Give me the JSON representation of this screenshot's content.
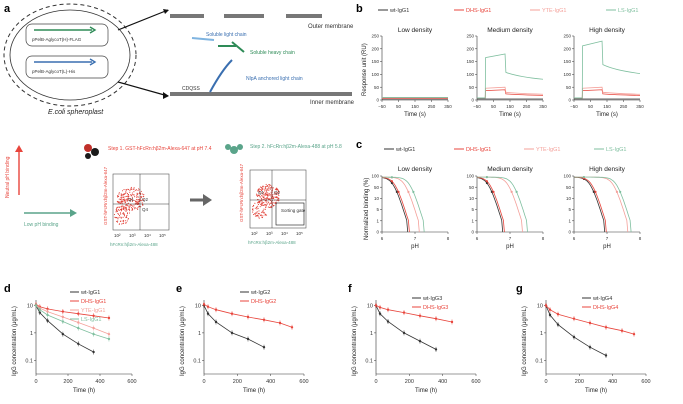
{
  "colors": {
    "wt": "#333333",
    "dhs": "#e8453c",
    "yte": "#f4a09a",
    "ls": "#7fbf9f",
    "green": "#2e8b57",
    "blue": "#3a6fb0",
    "red": "#e8453c"
  },
  "panel_a": {
    "label": "a",
    "construct1": "pPelB-AglycoT(H)-FLAG",
    "construct2": "pPelB-AglycoT(L)-His",
    "outer_membrane": "Outer membrane",
    "inner_membrane": "Inner membrane",
    "soluble_light": "Soluble light chain",
    "soluble_heavy": "Soluble heavy chain",
    "nlpa": "NlpA anchored light chain",
    "cdqss": "CDQSS",
    "spheroplast": "E.coli spheroplast"
  },
  "panel_sort": {
    "neutral": "Neutral pH binding",
    "low": "Low pH binding",
    "step1": "Step 1. GST-hFcRn:hβ2m-Alexa-647 at pH 7.4",
    "step2": "Step 2. hFcRn:hβ2m-Alexa-488 at pH 5.8",
    "ylabel1": "GST-hFcRn:hβ2m-Alexa-647",
    "ylabel2": "GST-hFcRn:hβ2m-Alexa-647",
    "xlabel": "hFcRn:hβ2m-Alexa-488",
    "q1": "Q1",
    "q2": "Q2",
    "q4": "Q4",
    "sorting_gate": "Sorting gate",
    "ticks": [
      "10²",
      "10³",
      "10⁴",
      "10⁵"
    ]
  },
  "panel_b": {
    "label": "b",
    "legend": [
      "wt-IgG1",
      "DHS-IgG1",
      "YTE-IgG1",
      "LS-IgG1"
    ],
    "ylabel": "Response unit (RU)",
    "xlabel": "Time (s)",
    "titles": [
      "Low density",
      "Medium density",
      "High density"
    ],
    "xticks": [
      "−50",
      "50",
      "150",
      "250",
      "350"
    ],
    "yticks": [
      "0",
      "50",
      "100",
      "150",
      "200",
      "250"
    ]
  },
  "panel_c": {
    "label": "c",
    "legend": [
      "wt-IgG1",
      "DHS-IgG1",
      "YTE-IgG1",
      "LS-IgG1"
    ],
    "ylabel": "Normalized binding (%)",
    "xlabel": "pH",
    "titles": [
      "Low density",
      "Medium density",
      "High density"
    ],
    "xticks": [
      "6",
      "7",
      "8"
    ],
    "yticks": [
      "0",
      "1",
      "5",
      "10",
      "50",
      "100"
    ]
  },
  "chart_data": [
    {
      "panel": "d",
      "type": "line",
      "legend": [
        "wt-IgG1",
        "DHS-IgG1",
        "YTE-IgG1",
        "LS-IgG1"
      ],
      "xlabel": "Time (h)",
      "ylabel": "IgG concentration (μg/mL)",
      "xticks": [
        "0",
        "200",
        "400",
        "600"
      ],
      "yticks": [
        "0.1",
        "1",
        "10"
      ],
      "series": [
        {
          "name": "wt-IgG1",
          "color": "#333333",
          "x": [
            0,
            24,
            72,
            168,
            264,
            360
          ],
          "y": [
            10,
            5.5,
            2.8,
            0.9,
            0.4,
            0.2
          ]
        },
        {
          "name": "DHS-IgG1",
          "color": "#e8453c",
          "x": [
            0,
            24,
            72,
            168,
            264,
            360,
            456
          ],
          "y": [
            11,
            9,
            7.5,
            6,
            5,
            4.2,
            3.5
          ]
        },
        {
          "name": "YTE-IgG1",
          "color": "#f4a09a",
          "x": [
            0,
            24,
            72,
            168,
            264,
            360,
            456
          ],
          "y": [
            10,
            8,
            6,
            3.8,
            2.4,
            1.5,
            0.9
          ]
        },
        {
          "name": "LS-IgG1",
          "color": "#7fbf9f",
          "x": [
            0,
            24,
            72,
            168,
            264,
            360,
            456
          ],
          "y": [
            10,
            7,
            4.5,
            2.6,
            1.5,
            0.9,
            0.6
          ]
        }
      ]
    },
    {
      "panel": "e",
      "type": "line",
      "legend": [
        "wt-IgG2",
        "DHS-IgG2"
      ],
      "xlabel": "Time (h)",
      "ylabel": "IgG concentration (μg/mL)",
      "xticks": [
        "0",
        "200",
        "400",
        "600"
      ],
      "yticks": [
        "0.1",
        "1",
        "10"
      ],
      "series": [
        {
          "name": "wt-IgG2",
          "color": "#333333",
          "x": [
            0,
            24,
            72,
            168,
            264,
            360
          ],
          "y": [
            10,
            5,
            2.5,
            1,
            0.6,
            0.3
          ]
        },
        {
          "name": "DHS-IgG2",
          "color": "#e8453c",
          "x": [
            0,
            24,
            72,
            168,
            264,
            360,
            456,
            528
          ],
          "y": [
            11,
            9,
            7,
            5,
            3.8,
            3,
            2.3,
            1.6
          ]
        }
      ]
    },
    {
      "panel": "f",
      "type": "line",
      "legend": [
        "wt-IgG3",
        "DHS-IgG3"
      ],
      "xlabel": "Time (h)",
      "ylabel": "IgG concentration (μg/mL)",
      "xticks": [
        "0",
        "200",
        "400",
        "600"
      ],
      "yticks": [
        "0.1",
        "1",
        "10"
      ],
      "series": [
        {
          "name": "wt-IgG3",
          "color": "#333333",
          "x": [
            0,
            24,
            72,
            168,
            264,
            360
          ],
          "y": [
            10,
            5,
            2.6,
            1,
            0.5,
            0.25
          ]
        },
        {
          "name": "DHS-IgG3",
          "color": "#e8453c",
          "x": [
            0,
            24,
            72,
            168,
            264,
            360,
            456
          ],
          "y": [
            10,
            8.5,
            7,
            5.5,
            4.2,
            3.3,
            2.5
          ]
        }
      ]
    },
    {
      "panel": "g",
      "type": "line",
      "legend": [
        "wt-IgG4",
        "DHS-IgG4"
      ],
      "xlabel": "Time (h)",
      "ylabel": "IgG concentration (μg/mL)",
      "xticks": [
        "0",
        "200",
        "400",
        "600"
      ],
      "yticks": [
        "0.1",
        "1",
        "10"
      ],
      "series": [
        {
          "name": "wt-IgG4",
          "color": "#333333",
          "x": [
            0,
            24,
            72,
            168,
            264,
            360
          ],
          "y": [
            10,
            4.5,
            2,
            0.7,
            0.3,
            0.15
          ]
        },
        {
          "name": "DHS-IgG4",
          "color": "#e8453c",
          "x": [
            0,
            24,
            72,
            168,
            264,
            360,
            456,
            528
          ],
          "y": [
            10,
            7,
            4.8,
            3.3,
            2.3,
            1.6,
            1.2,
            0.9
          ]
        }
      ]
    }
  ]
}
